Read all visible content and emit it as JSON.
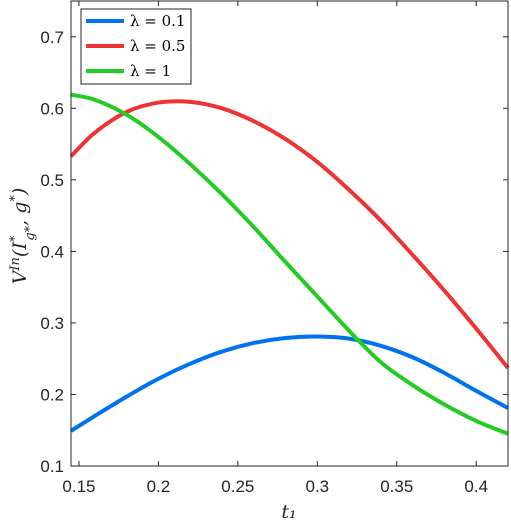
{
  "chart_data": {
    "type": "line",
    "title": "",
    "xlabel": "t₁",
    "ylabel": "V^{In}(I_{g*}^*, g^*)",
    "xlim": [
      0.145,
      0.42
    ],
    "ylim": [
      0.1,
      0.75
    ],
    "xticks": [
      "0.15",
      "0.2",
      "0.25",
      "0.3",
      "0.35",
      "0.4"
    ],
    "yticks": [
      "0.1",
      "0.2",
      "0.3",
      "0.4",
      "0.5",
      "0.6",
      "0.7"
    ],
    "grid": false,
    "legend_position": "top-left",
    "series": [
      {
        "name": "λ = 0.1",
        "color": "#0072ee",
        "x": [
          0.145,
          0.16,
          0.18,
          0.2,
          0.22,
          0.24,
          0.26,
          0.28,
          0.3,
          0.32,
          0.34,
          0.36,
          0.38,
          0.4,
          0.42
        ],
        "y": [
          0.149,
          0.17,
          0.197,
          0.222,
          0.243,
          0.26,
          0.272,
          0.279,
          0.281,
          0.278,
          0.268,
          0.252,
          0.23,
          0.205,
          0.181
        ]
      },
      {
        "name": "λ = 0.5",
        "color": "#ee3333",
        "x": [
          0.145,
          0.16,
          0.18,
          0.2,
          0.22,
          0.24,
          0.26,
          0.28,
          0.3,
          0.32,
          0.34,
          0.36,
          0.38,
          0.4,
          0.42
        ],
        "y": [
          0.533,
          0.566,
          0.595,
          0.608,
          0.609,
          0.6,
          0.582,
          0.557,
          0.525,
          0.486,
          0.443,
          0.395,
          0.345,
          0.292,
          0.237
        ]
      },
      {
        "name": "λ = 1",
        "color": "#22cc22",
        "x": [
          0.145,
          0.16,
          0.18,
          0.2,
          0.22,
          0.24,
          0.26,
          0.28,
          0.3,
          0.32,
          0.34,
          0.36,
          0.38,
          0.4,
          0.42
        ],
        "y": [
          0.619,
          0.612,
          0.591,
          0.56,
          0.522,
          0.48,
          0.434,
          0.385,
          0.337,
          0.289,
          0.245,
          0.213,
          0.186,
          0.163,
          0.145
        ]
      }
    ]
  }
}
